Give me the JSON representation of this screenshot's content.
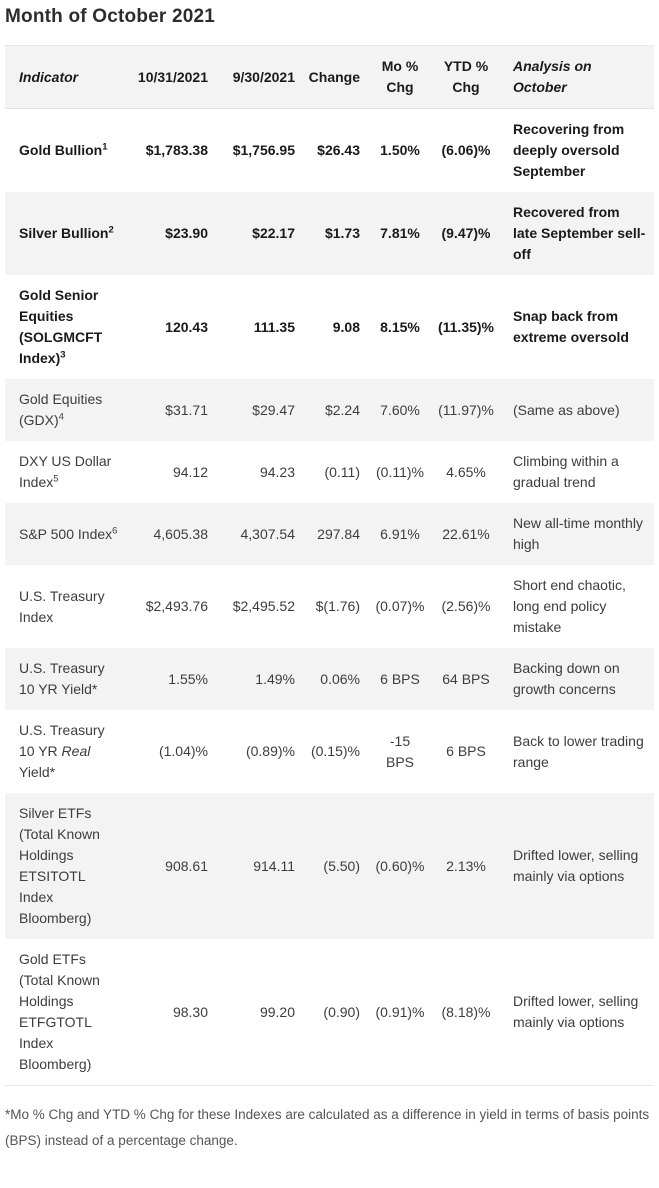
{
  "title": "Month of October 2021",
  "colors": {
    "alt_row_bg": "#f3f3f3",
    "header_bg": "#f3f3f3",
    "bold_text": "#1a1a1a",
    "regular_text": "#3d3d3d",
    "title_text": "#2d2d2d",
    "footnote_text": "#555555",
    "border": "#e7e7e7"
  },
  "table": {
    "headers": {
      "indicator": "Indicator",
      "current": "10/31/2021",
      "prior": "9/30/2021",
      "change": "Change",
      "mo_chg": "Mo %\nChg",
      "ytd_chg": "YTD %\nChg",
      "analysis": "Analysis on October"
    },
    "rows": [
      {
        "indicator": {
          "pre": "Gold Bullion",
          "italic": "",
          "post": "",
          "sup": "1"
        },
        "current": "$1,783.38",
        "prior": "$1,756.95",
        "change": "$26.43",
        "mo_chg": "1.50%",
        "ytd_chg": "(6.06)%",
        "analysis": "Recovering from deeply oversold September",
        "bold": true
      },
      {
        "indicator": {
          "pre": "Silver Bullion",
          "italic": "",
          "post": "",
          "sup": "2"
        },
        "current": "$23.90",
        "prior": "$22.17",
        "change": "$1.73",
        "mo_chg": "7.81%",
        "ytd_chg": "(9.47)%",
        "analysis": "Recovered from late September sell-off",
        "bold": true
      },
      {
        "indicator": {
          "pre": "Gold Senior Equities (SOLGMCFT Index)",
          "italic": "",
          "post": "",
          "sup": "3"
        },
        "current": "120.43",
        "prior": "111.35",
        "change": "9.08",
        "mo_chg": "8.15%",
        "ytd_chg": "(11.35)%",
        "analysis": "Snap back from extreme oversold",
        "bold": true
      },
      {
        "indicator": {
          "pre": "Gold Equities (GDX)",
          "italic": "",
          "post": "",
          "sup": "4"
        },
        "current": "$31.71",
        "prior": "$29.47",
        "change": "$2.24",
        "mo_chg": "7.60%",
        "ytd_chg": "(11.97)%",
        "analysis": "(Same as above)",
        "bold": false
      },
      {
        "indicator": {
          "pre": "DXY US Dollar Index",
          "italic": "",
          "post": "",
          "sup": "5"
        },
        "current": "94.12",
        "prior": "94.23",
        "change": "(0.11)",
        "mo_chg": "(0.11)%",
        "ytd_chg": "4.65%",
        "analysis": "Climbing within a gradual trend",
        "bold": false
      },
      {
        "indicator": {
          "pre": "S&P 500 Index",
          "italic": "",
          "post": "",
          "sup": "6"
        },
        "current": "4,605.38",
        "prior": "4,307.54",
        "change": "297.84",
        "mo_chg": "6.91%",
        "ytd_chg": "22.61%",
        "analysis": "New all-time monthly high",
        "bold": false
      },
      {
        "indicator": {
          "pre": "U.S. Treasury Index",
          "italic": "",
          "post": "",
          "sup": ""
        },
        "current": "$2,493.76",
        "prior": "$2,495.52",
        "change": "$(1.76)",
        "mo_chg": "(0.07)%",
        "ytd_chg": "(2.56)%",
        "analysis": "Short end chaotic, long end policy mistake",
        "bold": false
      },
      {
        "indicator": {
          "pre": "U.S. Treasury 10 YR Yield*",
          "italic": "",
          "post": "",
          "sup": ""
        },
        "current": "1.55%",
        "prior": "1.49%",
        "change": "0.06%",
        "mo_chg": "6 BPS",
        "ytd_chg": "64 BPS",
        "analysis": "Backing down on growth concerns",
        "bold": false
      },
      {
        "indicator": {
          "pre": "U.S. Treasury 10 YR ",
          "italic": "Real",
          "post": " Yield*",
          "sup": ""
        },
        "current": "(1.04)%",
        "prior": "(0.89)%",
        "change": "(0.15)%",
        "mo_chg": "-15\nBPS",
        "ytd_chg": "6 BPS",
        "analysis": "Back to lower trading range",
        "bold": false
      },
      {
        "indicator": {
          "pre": "Silver ETFs (Total Known Holdings ETSITOTL Index Bloomberg)",
          "italic": "",
          "post": "",
          "sup": ""
        },
        "current": "908.61",
        "prior": "914.11",
        "change": "(5.50)",
        "mo_chg": "(0.60)%",
        "ytd_chg": "2.13%",
        "analysis": "Drifted lower, selling mainly via options",
        "bold": false
      },
      {
        "indicator": {
          "pre": "Gold ETFs (Total Known Holdings ETFGTOTL Index Bloomberg)",
          "italic": "",
          "post": "",
          "sup": ""
        },
        "current": "98.30",
        "prior": "99.20",
        "change": "(0.90)",
        "mo_chg": "(0.91)%",
        "ytd_chg": "(8.18)%",
        "analysis": "Drifted lower, selling mainly via options",
        "bold": false
      }
    ]
  },
  "footnote": "*Mo % Chg and YTD % Chg for these Indexes are calculated as a difference in yield in terms of basis points (BPS) instead of a percentage change."
}
